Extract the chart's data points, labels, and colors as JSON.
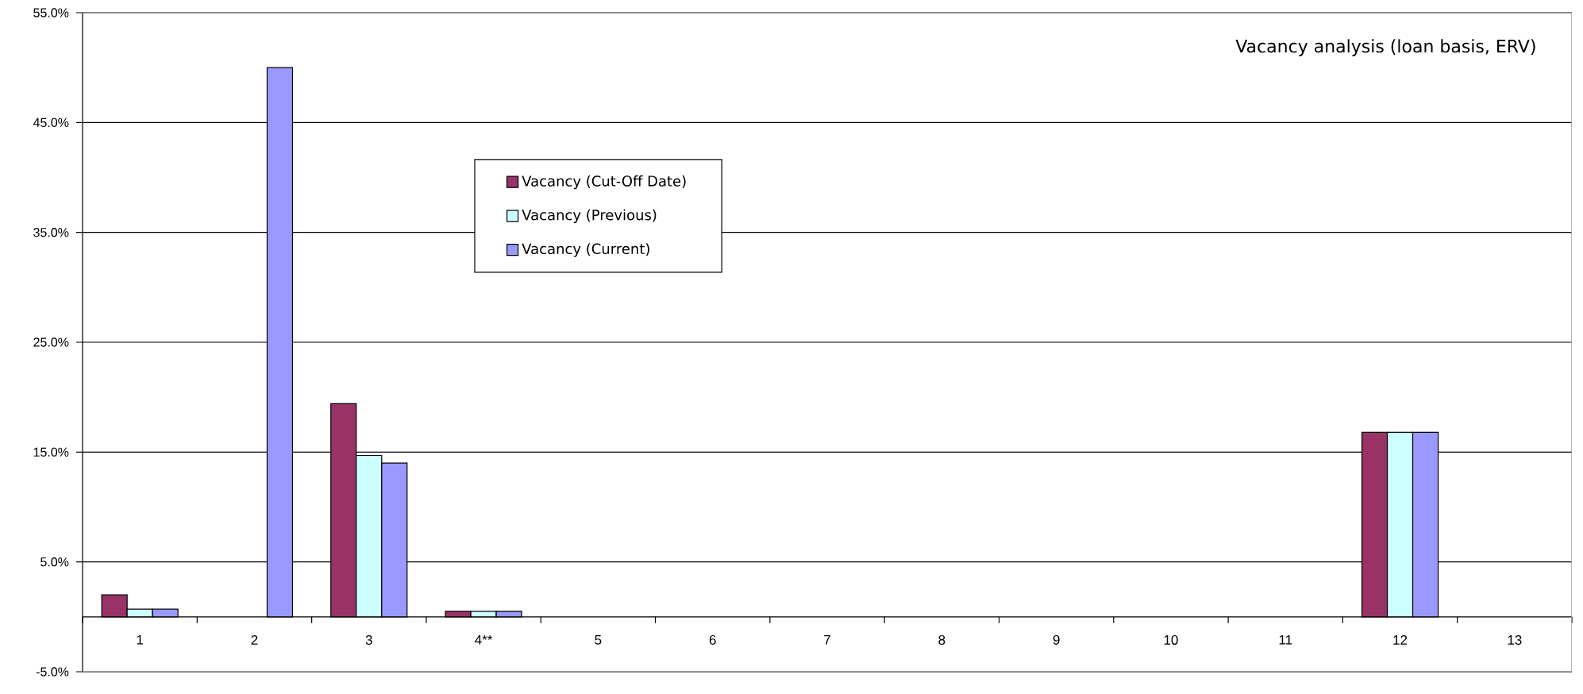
{
  "chart_data": {
    "type": "bar",
    "title": "Vacancy analysis (loan basis, ERV)",
    "categories": [
      "1",
      "2",
      "3",
      "4**",
      "5",
      "6",
      "7",
      "8",
      "9",
      "10",
      "11",
      "12",
      "13"
    ],
    "series": [
      {
        "name": "Vacancy (Cut-Off Date)",
        "color": "#993366",
        "values": [
          2.0,
          null,
          19.4,
          0.5,
          null,
          null,
          null,
          null,
          null,
          null,
          null,
          16.8,
          null
        ]
      },
      {
        "name": "Vacancy (Previous)",
        "color": "#ccffff",
        "values": [
          0.7,
          null,
          14.7,
          0.5,
          null,
          null,
          null,
          null,
          null,
          null,
          null,
          16.8,
          null
        ]
      },
      {
        "name": "Vacancy (Current)",
        "color": "#9999ff",
        "values": [
          0.7,
          50.0,
          14.0,
          0.5,
          null,
          null,
          null,
          null,
          null,
          null,
          null,
          16.8,
          null
        ]
      }
    ],
    "ylim": [
      -5,
      55
    ],
    "yticks": [
      {
        "value": -5,
        "label": "-5.0%"
      },
      {
        "value": 5,
        "label": "5.0%"
      },
      {
        "value": 15,
        "label": "15.0%"
      },
      {
        "value": 25,
        "label": "25.0%"
      },
      {
        "value": 35,
        "label": "35.0%"
      },
      {
        "value": 45,
        "label": "45.0%"
      },
      {
        "value": 55,
        "label": "55.0%"
      }
    ],
    "grid": "y",
    "legend": "top left"
  }
}
